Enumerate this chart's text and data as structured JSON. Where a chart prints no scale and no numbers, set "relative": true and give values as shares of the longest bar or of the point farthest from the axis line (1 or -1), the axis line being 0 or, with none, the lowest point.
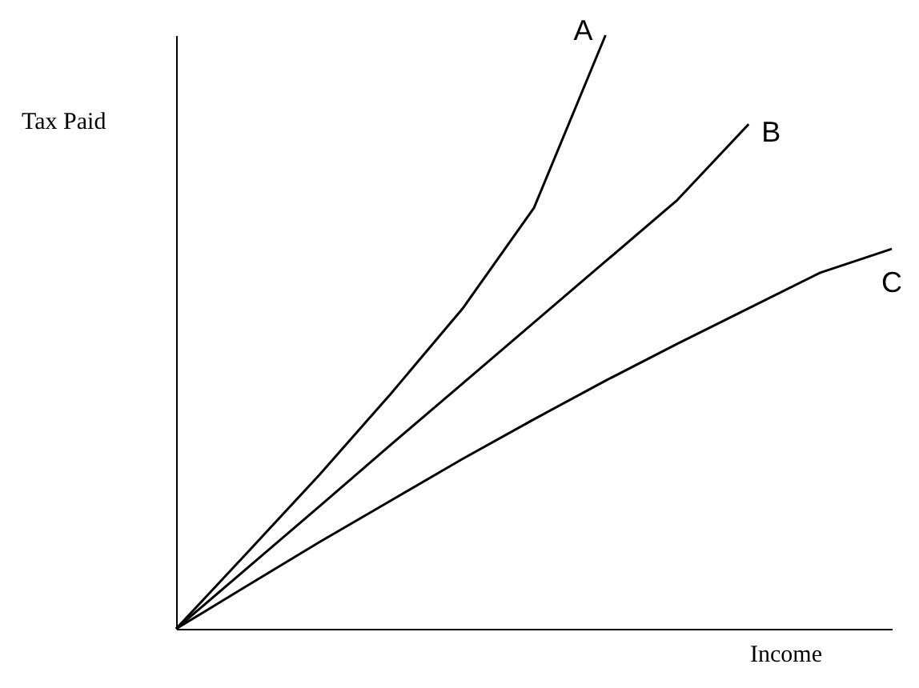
{
  "chart_data": {
    "type": "line",
    "xlabel": "Income",
    "ylabel": "Tax Paid",
    "relative": true,
    "marker": "none",
    "categories": [
      null,
      null,
      null,
      null,
      null,
      null,
      null,
      null,
      null,
      null,
      null
    ],
    "series": [
      {
        "name": "A",
        "color": "#000000",
        "values": [
          0,
          0.129,
          0.259,
          0.396,
          0.539,
          0.709,
          1.0,
          null,
          null,
          null,
          null
        ]
      },
      {
        "name": "B",
        "color": "#000000",
        "values": [
          0,
          0.103,
          0.206,
          0.31,
          0.413,
          0.516,
          0.619,
          0.722,
          0.85,
          null,
          null
        ]
      },
      {
        "name": "C",
        "color": "#000000",
        "values": [
          0,
          0.073,
          0.146,
          0.216,
          0.286,
          0.353,
          0.418,
          0.48,
          0.54,
          0.6,
          0.64
        ]
      }
    ]
  }
}
